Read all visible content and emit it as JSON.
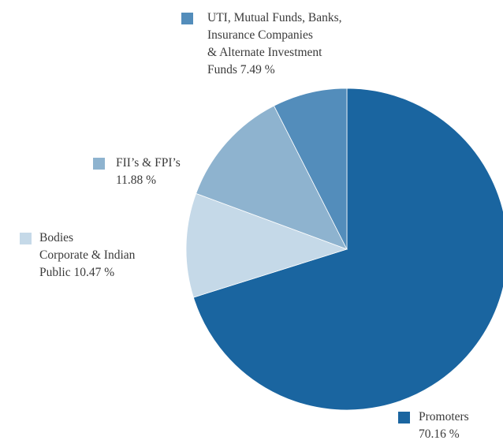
{
  "chart_data": {
    "type": "pie",
    "series": [
      {
        "name": "Promoters",
        "color": "#1a65a0",
        "values": [
          70.16
        ],
        "value_labels": [
          "70.16 %"
        ]
      },
      {
        "name": "Bodies\nCorporate & Indian\nPublic",
        "color": "#c5d9e8",
        "values": [
          10.47
        ],
        "value_labels": [
          "10.47 %"
        ]
      },
      {
        "name": "FII’s & FPI’s",
        "color": "#8eb3cf",
        "values": [
          11.88
        ],
        "value_labels": [
          "11.88 %"
        ]
      },
      {
        "name": "UTI, Mutual Funds, Banks,\nInsurance Companies\n& Alternate Investment\nFunds",
        "color": "#538dbb",
        "values": [
          7.49
        ],
        "value_labels": [
          "7.49 %"
        ]
      }
    ]
  }
}
